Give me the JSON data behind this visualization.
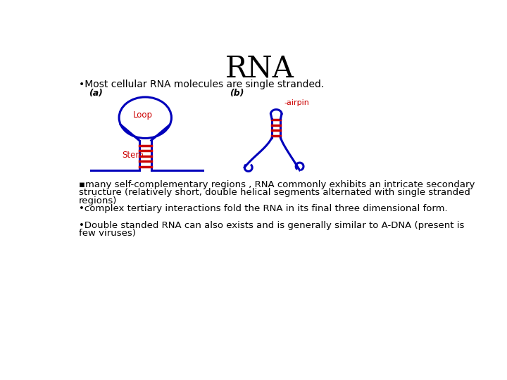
{
  "title": "RNA",
  "title_fontsize": 30,
  "bg_color": "#ffffff",
  "blue_color": "#0000bb",
  "red_color": "#cc0000",
  "black_color": "#000000",
  "bullet1": "•Most cellular RNA molecules are single stranded.",
  "label_a": "(a)",
  "label_b": "(b)",
  "label_loop": "Loop",
  "label_stem": "Stem",
  "label_hairpin": "-airpin",
  "bullet2_line1": "▪many self-complementary regions , RNA commonly exhibits an intricate secondary",
  "bullet2_line2": "structure (relatively short, double helical segments alternated with single stranded",
  "bullet2_line3": "regions)",
  "bullet3": "•complex tertiary interactions fold the RNA in its final three dimensional form.",
  "bullet4_line1": "•Double standed RNA can also exists and is generally similar to A-DNA (present is",
  "bullet4_line2": "few viruses)"
}
